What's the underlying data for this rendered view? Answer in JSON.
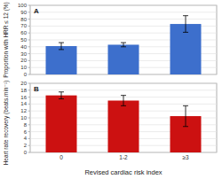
{
  "chart_data": [
    {
      "type": "bar",
      "categories": [
        null,
        null,
        null
      ],
      "values": [
        41,
        43,
        73
      ],
      "errors": [
        5,
        3,
        12
      ],
      "color": "#3d6fcc",
      "ylabel": "Proportion with HRR ≤ 12 (%)",
      "ylim": [
        0,
        100
      ],
      "yticks": [
        0,
        10,
        20,
        30,
        40,
        50,
        60,
        70,
        80,
        90,
        100
      ],
      "grid": true,
      "annotations": [
        "A"
      ]
    },
    {
      "type": "bar",
      "categories": [
        "0",
        "1-2",
        "≥3"
      ],
      "values": [
        16.5,
        15,
        10.5
      ],
      "errors": [
        1.0,
        1.5,
        3.0
      ],
      "color": "#cc1111",
      "ylabel": "Heart rate recovery (beats.min⁻¹)",
      "xlabel": "Revised cardiac risk index",
      "ylim": [
        0,
        20
      ],
      "yticks": [
        0,
        2,
        4,
        6,
        8,
        10,
        12,
        14,
        16,
        18,
        20
      ],
      "grid": true,
      "annotations": [
        "B"
      ]
    }
  ]
}
